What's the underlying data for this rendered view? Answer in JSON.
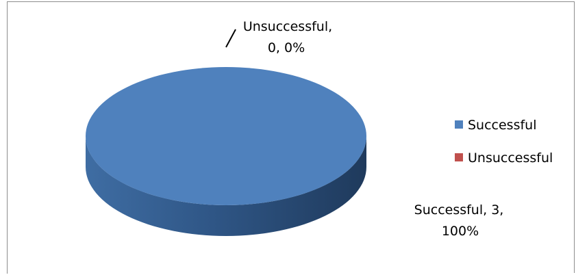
{
  "chart_data": {
    "type": "pie",
    "title": "",
    "style": "3d",
    "legend_position": "right",
    "slices": [
      {
        "name": "Successful",
        "value": 3,
        "percent": "100%",
        "label": "Successful, 3, 100%",
        "label_line1": "Successful, 3,",
        "label_line2": "100%",
        "color": "#4f81bd"
      },
      {
        "name": "Unsuccessful",
        "value": 0,
        "percent": "0%",
        "label": "Unsuccessful, 0, 0%",
        "label_line1": "Unsuccessful,",
        "label_line2": "0, 0%",
        "color": "#c0504d"
      }
    ]
  }
}
